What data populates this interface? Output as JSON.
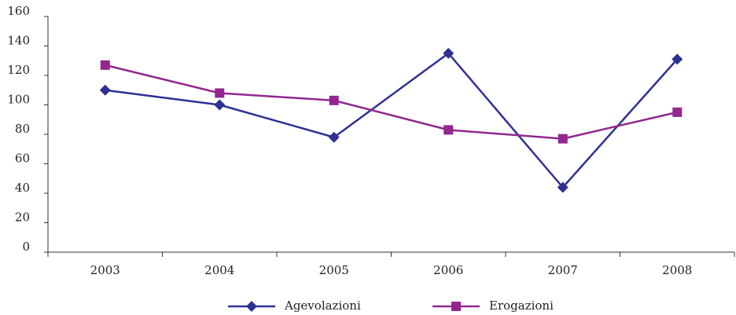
{
  "chart_data": {
    "type": "line",
    "categories": [
      "2003",
      "2004",
      "2005",
      "2006",
      "2007",
      "2008"
    ],
    "series": [
      {
        "name": "Agevolazioni",
        "values": [
          110,
          100,
          78,
          135,
          44,
          131
        ],
        "color": "#2e3192",
        "marker": "diamond"
      },
      {
        "name": "Erogazioni",
        "values": [
          127,
          108,
          103,
          83,
          77,
          95
        ],
        "color": "#93278f",
        "marker": "square"
      }
    ],
    "y_ticks": [
      "0",
      "20",
      "40",
      "60",
      "80",
      "100",
      "120",
      "140",
      "160"
    ],
    "ylim": [
      0,
      160
    ],
    "grid": false,
    "legend_position": "bottom-center",
    "title": "",
    "xlabel": "",
    "ylabel": ""
  }
}
